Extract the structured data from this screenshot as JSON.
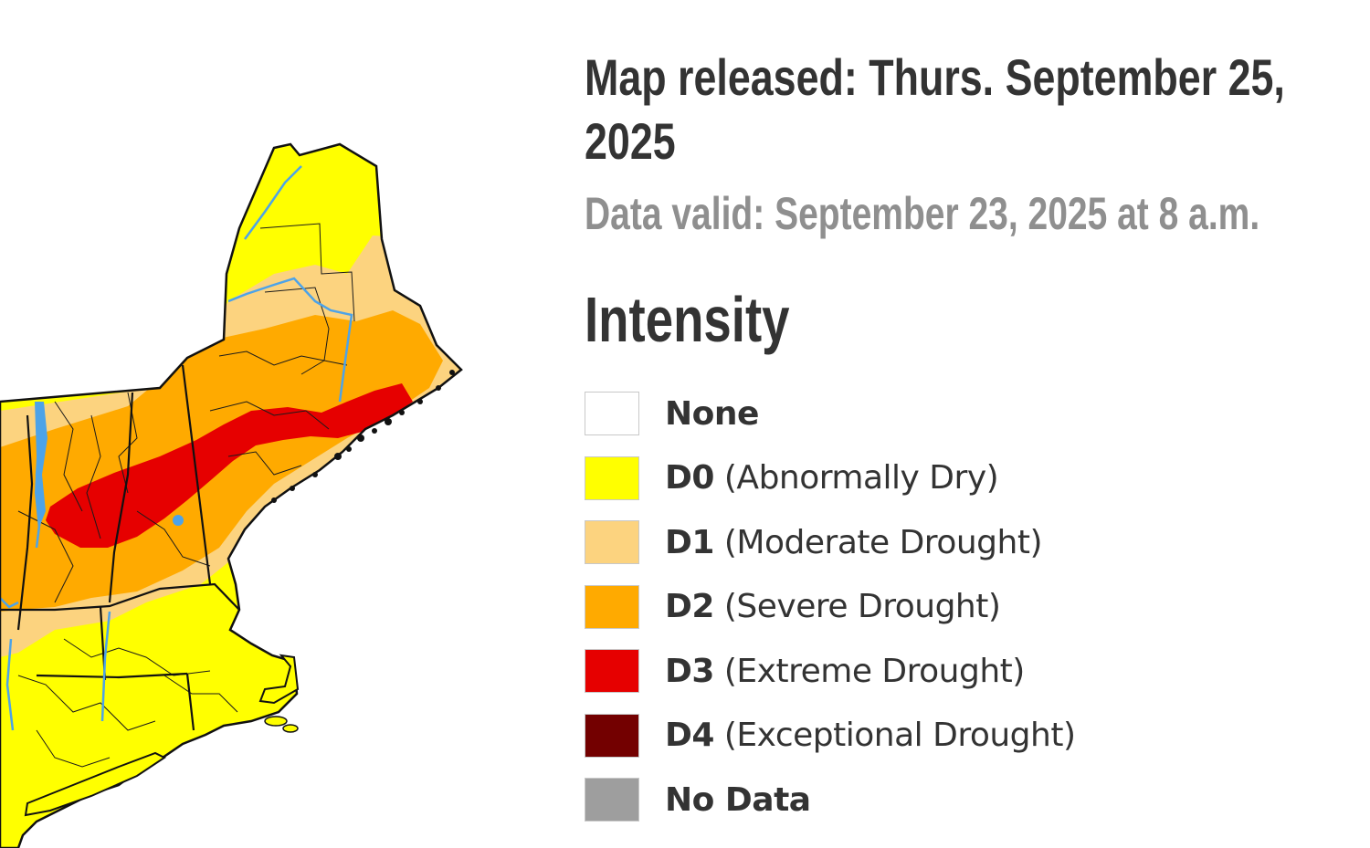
{
  "header": {
    "released": "Map released: Thurs. September 25, 2025",
    "valid": "Data valid: September 23, 2025 at 8 a.m."
  },
  "legend": {
    "title": "Intensity",
    "items": [
      {
        "code": "None",
        "desc": "",
        "color": "#ffffff"
      },
      {
        "code": "D0",
        "desc": "(Abnormally Dry)",
        "color": "#ffff00"
      },
      {
        "code": "D1",
        "desc": "(Moderate Drought)",
        "color": "#fcd37f"
      },
      {
        "code": "D2",
        "desc": "(Severe Drought)",
        "color": "#ffaa00"
      },
      {
        "code": "D3",
        "desc": "(Extreme Drought)",
        "color": "#e60000"
      },
      {
        "code": "D4",
        "desc": "(Exceptional Drought)",
        "color": "#730000"
      },
      {
        "code": "No Data",
        "desc": "",
        "color": "#9e9e9e"
      }
    ]
  },
  "map": {
    "region": "Northeast United States",
    "colors": {
      "land_base": "#ffff00",
      "water": "#4da3e8",
      "border": "#1a1a1a"
    }
  }
}
